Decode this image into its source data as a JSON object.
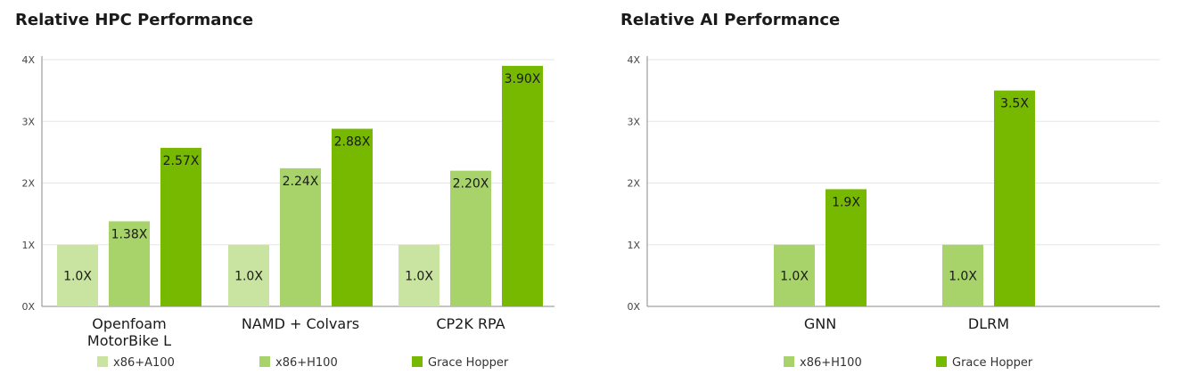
{
  "colors": {
    "x86_a100": "#c9e3a0",
    "x86_h100": "#a7d36a",
    "grace_hopper": "#76b900",
    "grid": "#e6e6e6",
    "axis": "#888888"
  },
  "chart_data": [
    {
      "type": "bar",
      "title": "Relative HPC Performance",
      "ylim": [
        0,
        4
      ],
      "yticks": [
        "0X",
        "1X",
        "2X",
        "3X",
        "4X"
      ],
      "grid": true,
      "legend": "bottom",
      "categories": [
        [
          "Openfoam",
          "MotorBike L"
        ],
        [
          "NAMD + Colvars"
        ],
        [
          "CP2K RPA"
        ]
      ],
      "series": [
        {
          "name": "x86+A100",
          "color": "#c9e3a0",
          "values": [
            1.0,
            1.0,
            1.0
          ],
          "labels": [
            "1.0X",
            "1.0X",
            "1.0X"
          ]
        },
        {
          "name": "x86+H100",
          "color": "#a7d36a",
          "values": [
            1.38,
            2.24,
            2.2
          ],
          "labels": [
            "1.38X",
            "2.24X",
            "2.20X"
          ]
        },
        {
          "name": "Grace Hopper",
          "color": "#76b900",
          "values": [
            2.57,
            2.88,
            3.9
          ],
          "labels": [
            "2.57X",
            "2.88X",
            "3.90X"
          ]
        }
      ]
    },
    {
      "type": "bar",
      "title": "Relative AI Performance",
      "ylim": [
        0,
        4
      ],
      "yticks": [
        "0X",
        "1X",
        "2X",
        "3X",
        "4X"
      ],
      "grid": true,
      "legend": "bottom",
      "categories": [
        [
          "GNN"
        ],
        [
          "DLRM"
        ]
      ],
      "series": [
        {
          "name": "x86+H100",
          "color": "#a7d36a",
          "values": [
            1.0,
            1.0
          ],
          "labels": [
            "1.0X",
            "1.0X"
          ]
        },
        {
          "name": "Grace Hopper",
          "color": "#76b900",
          "values": [
            1.9,
            3.5
          ],
          "labels": [
            "1.9X",
            "3.5X"
          ]
        }
      ]
    }
  ]
}
